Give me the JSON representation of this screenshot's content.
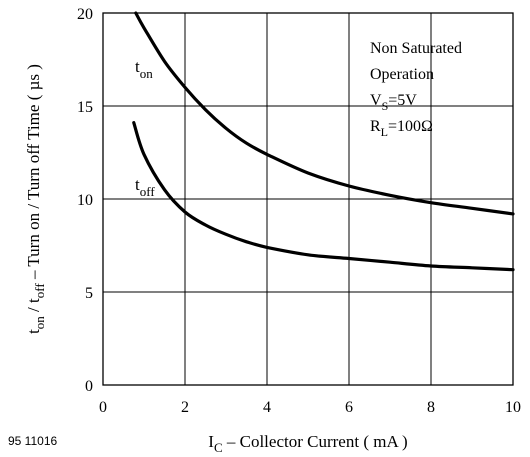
{
  "chart_data": {
    "type": "line",
    "xlabel": {
      "main": "I",
      "sub": "C",
      "rest": " – Collector Current ( mA )"
    },
    "ylabel": {
      "p1": "t",
      "s1": "on",
      "p2": " / t",
      "s2": "off",
      "p3": "  – Turn on / Turn off Time ( µs )"
    },
    "xlim": [
      0,
      10
    ],
    "ylim": [
      0,
      20
    ],
    "xticks": [
      0,
      2,
      4,
      6,
      8,
      10
    ],
    "yticks": [
      0,
      5,
      10,
      15,
      20
    ],
    "grid": true,
    "series": [
      {
        "name": {
          "main": "t",
          "sub": "on"
        },
        "x": [
          0.8,
          1.0,
          1.5,
          2.0,
          2.5,
          3.0,
          3.5,
          4.0,
          5.0,
          6.0,
          7.0,
          8.0,
          9.0,
          10.0
        ],
        "y": [
          20.0,
          19.2,
          17.4,
          16.0,
          14.8,
          13.8,
          13.0,
          12.4,
          11.4,
          10.7,
          10.2,
          9.8,
          9.5,
          9.2
        ]
      },
      {
        "name": {
          "main": "t",
          "sub": "off"
        },
        "x": [
          0.75,
          1.0,
          1.5,
          2.0,
          2.5,
          3.0,
          3.5,
          4.0,
          5.0,
          6.0,
          7.0,
          8.0,
          9.0,
          10.0
        ],
        "y": [
          14.1,
          12.4,
          10.5,
          9.3,
          8.6,
          8.1,
          7.7,
          7.4,
          7.0,
          6.8,
          6.6,
          6.4,
          6.3,
          6.2
        ]
      }
    ],
    "annotation": [
      {
        "type": "text",
        "text": "Non Saturated"
      },
      {
        "type": "text",
        "text": "Operation"
      },
      {
        "type": "sub",
        "main": "V",
        "sub": "S",
        "rest": "=5V"
      },
      {
        "type": "sub",
        "main": "R",
        "sub": "L",
        "rest": "=100Ω"
      }
    ]
  },
  "document_id": "95 11016"
}
